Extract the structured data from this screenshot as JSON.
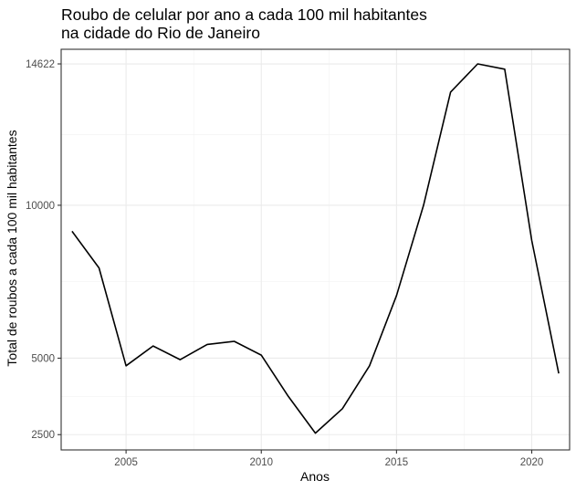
{
  "chart_data": {
    "type": "line",
    "title_line1": "Roubo de celular por ano a cada 100 mil habitantes",
    "title_line2": "na cidade do Rio de Janeiro",
    "xlabel": "Anos",
    "ylabel": "Total de roubos a cada 100 mil habitantes",
    "xlim": [
      2002.6,
      2021.4
    ],
    "ylim": [
      2000,
      15100
    ],
    "x_ticks": [
      2005,
      2010,
      2015,
      2020
    ],
    "y_ticks": [
      2500,
      5000,
      10000,
      14622
    ],
    "x_tick_labels": [
      "2005",
      "2010",
      "2015",
      "2020"
    ],
    "y_tick_labels": [
      "2500",
      "5000",
      "10000",
      "14622"
    ],
    "grid": true,
    "line_color": "#000000",
    "series": [
      {
        "x": [
          2003,
          2004,
          2005,
          2006,
          2007,
          2008,
          2009,
          2010,
          2011,
          2012,
          2013,
          2014,
          2015,
          2016,
          2017,
          2018,
          2019,
          2020,
          2021
        ],
        "values": [
          9150,
          7950,
          4750,
          5400,
          4950,
          5450,
          5550,
          5100,
          3750,
          2550,
          3350,
          4750,
          7050,
          10000,
          13700,
          14622,
          14450,
          8850,
          4500
        ]
      }
    ]
  }
}
